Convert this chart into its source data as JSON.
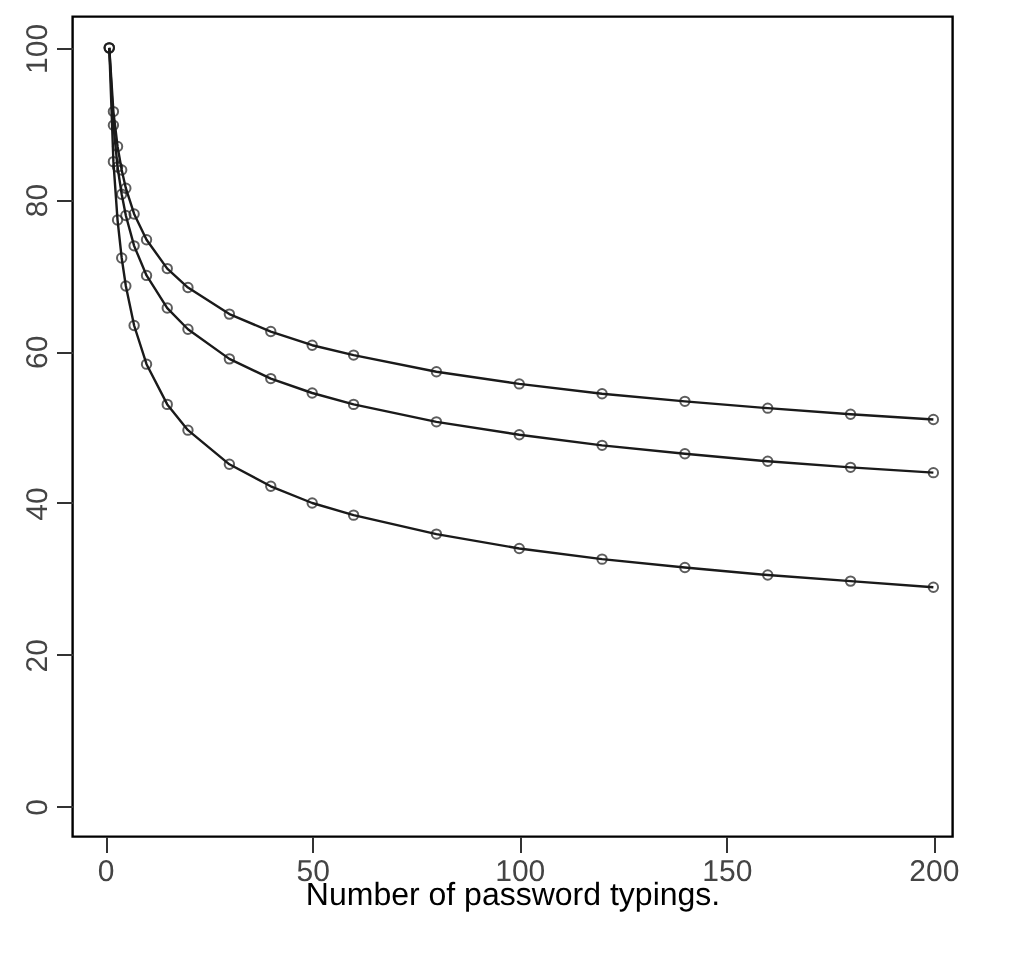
{
  "chart_data": {
    "type": "line",
    "xlabel": "Number of password typings.",
    "marker": "circle",
    "grid": false,
    "legend": false,
    "x": [
      1,
      2,
      3,
      4,
      5,
      7,
      10,
      15,
      20,
      30,
      40,
      50,
      60,
      80,
      100,
      120,
      140,
      160,
      180,
      200
    ],
    "series": [
      {
        "color": "#1a1a1a",
        "values": [
          100,
          91.6,
          87.0,
          83.9,
          81.5,
          78.1,
          74.7,
          70.9,
          68.4,
          64.9,
          62.6,
          60.8,
          59.5,
          57.3,
          55.7,
          54.4,
          53.4,
          52.5,
          51.7,
          51.0
        ]
      },
      {
        "color": "#1a1a1a",
        "values": [
          100,
          89.8,
          84.3,
          80.7,
          77.9,
          73.9,
          70.0,
          65.7,
          62.9,
          59.0,
          56.4,
          54.5,
          53.0,
          50.7,
          49.0,
          47.6,
          46.5,
          45.5,
          44.7,
          44.0
        ]
      },
      {
        "color": "#1a1a1a",
        "values": [
          100,
          85.0,
          77.3,
          72.3,
          68.6,
          63.4,
          58.3,
          53.0,
          49.6,
          45.1,
          42.2,
          40.0,
          38.4,
          35.9,
          34.0,
          32.6,
          31.5,
          30.5,
          29.7,
          28.9
        ]
      }
    ],
    "xlim": [
      -8,
      204.5
    ],
    "ylim": [
      -3.9,
      104.2
    ],
    "xticks": [
      0,
      50,
      100,
      150,
      200
    ],
    "yticks": [
      0,
      20,
      40,
      60,
      80,
      100
    ]
  }
}
